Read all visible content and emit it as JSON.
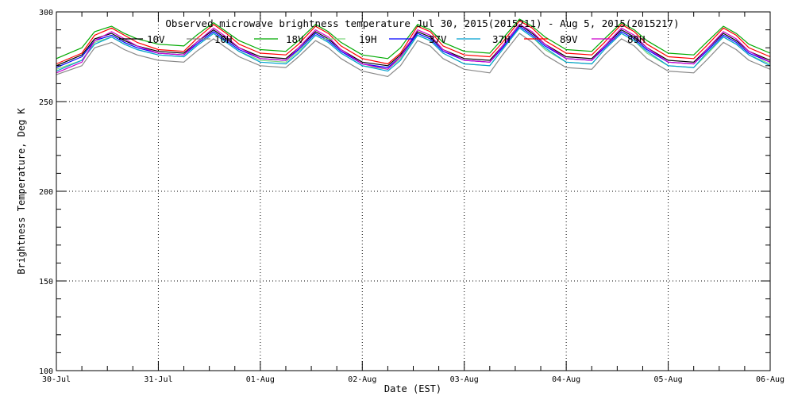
{
  "chart_data": {
    "type": "line",
    "title": "Observed microwave brightness temperature Jul 30, 2015(2015211) - Aug  5, 2015(2015217)",
    "xlabel": "Date (EST)",
    "ylabel": "Brightness Temperature, Deg K",
    "xlim": [
      "2015-07-30",
      "2015-08-06"
    ],
    "ylim": [
      100,
      300
    ],
    "x_ticks": [
      "30-Jul",
      "31-Jul",
      "01-Aug",
      "02-Aug",
      "03-Aug",
      "04-Aug",
      "05-Aug",
      "06-Aug"
    ],
    "y_ticks": [
      100,
      150,
      200,
      250,
      300
    ],
    "grid": true,
    "legend_position": "top",
    "x_hours": [
      0,
      6,
      9,
      13,
      16,
      19,
      24,
      30,
      33,
      37,
      40,
      43,
      48,
      54,
      57,
      61,
      64,
      67,
      72,
      78,
      81,
      85,
      88,
      91,
      96,
      102,
      105,
      109,
      112,
      115,
      120,
      126,
      129,
      133,
      136,
      139,
      144,
      150,
      153,
      157,
      160,
      163,
      168
    ],
    "series": [
      {
        "name": "10V",
        "color": "#000000",
        "values": [
          270,
          276,
          285,
          288,
          284,
          281,
          278,
          277,
          283,
          290,
          285,
          280,
          275,
          274,
          280,
          289,
          285,
          279,
          272,
          270,
          276,
          289,
          286,
          279,
          274,
          273,
          281,
          293,
          288,
          282,
          275,
          274,
          281,
          290,
          286,
          280,
          273,
          272,
          279,
          288,
          284,
          278,
          273
        ]
      },
      {
        "name": "10H",
        "color": "#888888",
        "values": [
          265,
          270,
          280,
          283,
          279,
          276,
          273,
          272,
          278,
          285,
          280,
          275,
          270,
          269,
          275,
          284,
          280,
          274,
          267,
          264,
          270,
          284,
          281,
          274,
          268,
          266,
          276,
          288,
          283,
          276,
          269,
          268,
          276,
          285,
          281,
          274,
          267,
          266,
          273,
          283,
          279,
          273,
          268
        ]
      },
      {
        "name": "18V",
        "color": "#00aa00",
        "values": [
          274,
          280,
          289,
          292,
          288,
          285,
          282,
          281,
          287,
          294,
          289,
          284,
          279,
          278,
          284,
          293,
          289,
          283,
          276,
          274,
          280,
          293,
          290,
          283,
          278,
          277,
          285,
          296,
          292,
          286,
          279,
          278,
          285,
          294,
          290,
          284,
          277,
          276,
          283,
          292,
          288,
          282,
          277
        ]
      },
      {
        "name": "19H",
        "color": "#7fd87f",
        "values": [
          268,
          273,
          283,
          286,
          282,
          279,
          276,
          275,
          281,
          288,
          283,
          278,
          273,
          272,
          278,
          287,
          283,
          277,
          270,
          268,
          274,
          287,
          284,
          277,
          271,
          270,
          279,
          291,
          286,
          279,
          272,
          271,
          279,
          288,
          284,
          277,
          270,
          269,
          276,
          286,
          282,
          276,
          271
        ]
      },
      {
        "name": "37V",
        "color": "#0000ff",
        "values": [
          269,
          275,
          284,
          287,
          283,
          280,
          277,
          276,
          282,
          289,
          284,
          279,
          274,
          273,
          279,
          288,
          284,
          278,
          271,
          269,
          275,
          288,
          285,
          278,
          273,
          272,
          280,
          292,
          287,
          281,
          274,
          273,
          280,
          289,
          285,
          279,
          272,
          271,
          278,
          287,
          283,
          277,
          272
        ]
      },
      {
        "name": "37H",
        "color": "#00a0d0",
        "values": [
          267,
          273,
          282,
          286,
          282,
          279,
          276,
          275,
          281,
          288,
          283,
          278,
          272,
          271,
          277,
          287,
          283,
          277,
          270,
          267,
          273,
          287,
          284,
          277,
          271,
          270,
          279,
          291,
          286,
          280,
          272,
          271,
          279,
          288,
          284,
          278,
          270,
          269,
          277,
          286,
          282,
          276,
          270
        ]
      },
      {
        "name": "89V",
        "color": "#ff0000",
        "values": [
          271,
          277,
          287,
          291,
          287,
          283,
          279,
          278,
          285,
          293,
          288,
          282,
          277,
          276,
          282,
          292,
          288,
          281,
          274,
          271,
          277,
          292,
          289,
          281,
          276,
          275,
          283,
          295,
          291,
          284,
          277,
          276,
          283,
          293,
          289,
          282,
          275,
          274,
          281,
          291,
          287,
          280,
          275
        ]
      },
      {
        "name": "89H",
        "color": "#cc00cc",
        "values": [
          266,
          272,
          284,
          289,
          285,
          281,
          277,
          276,
          283,
          291,
          286,
          280,
          274,
          273,
          280,
          290,
          286,
          279,
          271,
          268,
          275,
          290,
          287,
          279,
          273,
          272,
          281,
          293,
          289,
          282,
          274,
          273,
          281,
          291,
          287,
          280,
          272,
          271,
          279,
          289,
          285,
          278,
          272
        ]
      }
    ]
  }
}
